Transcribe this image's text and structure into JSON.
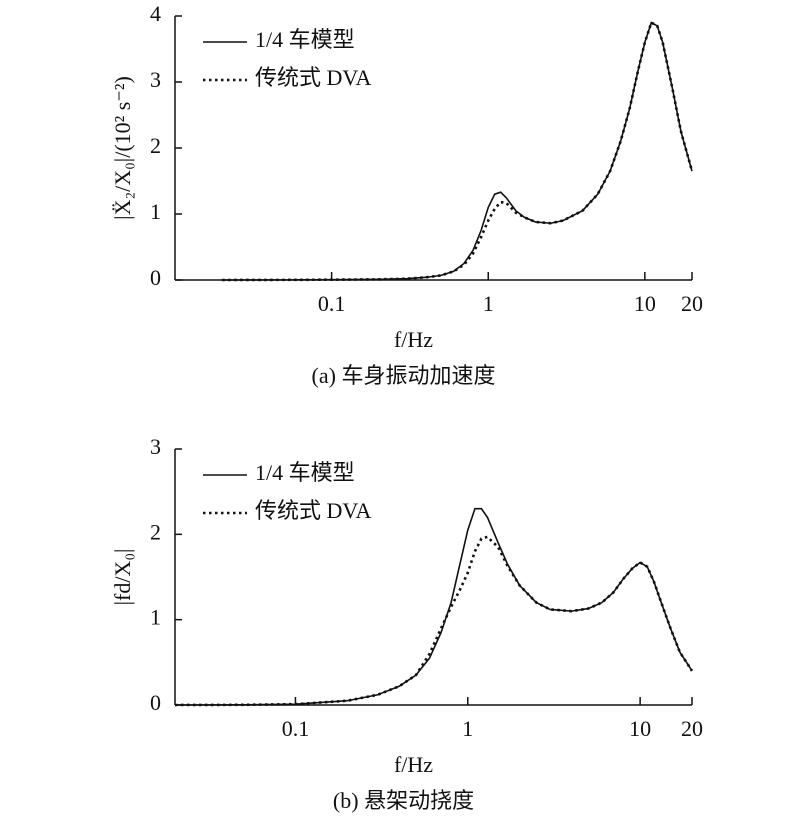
{
  "chart_data": [
    {
      "type": "line",
      "caption": "(a) 车身振动加速度",
      "xlabel": "f/Hz",
      "ylabel": "|Ẍ₂/X₀|/(10² s⁻²)",
      "x": [
        0.02,
        0.05,
        0.1,
        0.2,
        0.3,
        0.4,
        0.5,
        0.6,
        0.7,
        0.8,
        0.9,
        1.0,
        1.1,
        1.2,
        1.3,
        1.5,
        1.7,
        2,
        2.5,
        3,
        4,
        5,
        6,
        7,
        8,
        9,
        10,
        11,
        12,
        13,
        15,
        17,
        20
      ],
      "series": [
        {
          "name": "1/4 车模型",
          "color": "#111111",
          "style": "solid",
          "values": [
            0,
            0.002,
            0.005,
            0.01,
            0.02,
            0.04,
            0.07,
            0.13,
            0.25,
            0.45,
            0.75,
            1.1,
            1.3,
            1.33,
            1.25,
            1.05,
            0.95,
            0.88,
            0.86,
            0.9,
            1.05,
            1.3,
            1.65,
            2.1,
            2.6,
            3.15,
            3.6,
            3.9,
            3.85,
            3.6,
            2.9,
            2.25,
            1.65
          ]
        },
        {
          "name": "传统式 DVA",
          "color": "#111111",
          "style": "dotted",
          "values": [
            0,
            0.002,
            0.005,
            0.01,
            0.02,
            0.04,
            0.07,
            0.13,
            0.23,
            0.4,
            0.65,
            0.9,
            1.08,
            1.18,
            1.17,
            1.02,
            0.95,
            0.88,
            0.86,
            0.9,
            1.05,
            1.3,
            1.65,
            2.1,
            2.6,
            3.15,
            3.6,
            3.9,
            3.85,
            3.6,
            2.9,
            2.25,
            1.65
          ]
        }
      ],
      "xscale": "log",
      "xlim": [
        0.01,
        20
      ],
      "xticks": [
        0.1,
        1,
        10,
        20
      ],
      "ylim": [
        0,
        4
      ],
      "yticks": [
        0,
        1,
        2,
        3,
        4
      ],
      "legend": "upper left"
    },
    {
      "type": "line",
      "caption": "(b) 悬架动挠度",
      "xlabel": "f/Hz",
      "ylabel": "|fd/X₀|",
      "x": [
        0.02,
        0.05,
        0.1,
        0.2,
        0.3,
        0.4,
        0.5,
        0.6,
        0.7,
        0.8,
        0.9,
        1.0,
        1.1,
        1.2,
        1.3,
        1.5,
        1.7,
        2,
        2.5,
        3,
        4,
        5,
        6,
        7,
        8,
        9,
        10,
        11,
        12,
        13,
        15,
        17,
        20
      ],
      "series": [
        {
          "name": "1/4 车模型",
          "color": "#111111",
          "style": "solid",
          "values": [
            0,
            0.002,
            0.01,
            0.05,
            0.12,
            0.22,
            0.35,
            0.55,
            0.85,
            1.2,
            1.65,
            2.05,
            2.3,
            2.3,
            2.2,
            1.9,
            1.65,
            1.4,
            1.2,
            1.12,
            1.1,
            1.13,
            1.2,
            1.32,
            1.48,
            1.6,
            1.67,
            1.62,
            1.45,
            1.25,
            0.9,
            0.62,
            0.4
          ]
        },
        {
          "name": "传统式 DVA",
          "color": "#111111",
          "style": "dotted",
          "values": [
            0,
            0.002,
            0.01,
            0.05,
            0.12,
            0.22,
            0.35,
            0.6,
            0.9,
            1.15,
            1.35,
            1.55,
            1.8,
            1.95,
            1.97,
            1.85,
            1.63,
            1.4,
            1.2,
            1.12,
            1.1,
            1.13,
            1.2,
            1.32,
            1.48,
            1.6,
            1.67,
            1.62,
            1.45,
            1.25,
            0.9,
            0.62,
            0.4
          ]
        }
      ],
      "xscale": "log",
      "xlim": [
        0.02,
        20
      ],
      "xticks": [
        0.1,
        1,
        10,
        20
      ],
      "ylim": [
        0,
        3
      ],
      "yticks": [
        0,
        1,
        2,
        3
      ],
      "legend": "upper left"
    }
  ]
}
